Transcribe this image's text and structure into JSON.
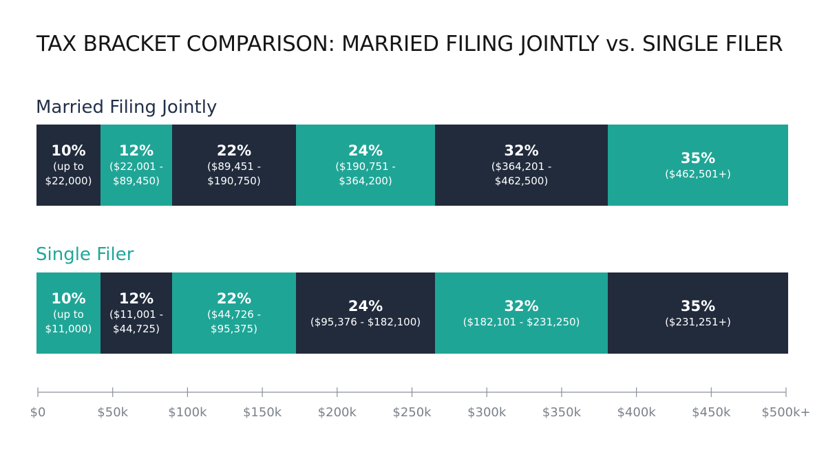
{
  "title": "TAX BRACKET COMPARISON: MARRIED FILING JOINTLY vs. SINGLE FILER",
  "colors": {
    "dark": "#212b3c",
    "teal": "#1fa596"
  },
  "chart_data": {
    "type": "bar",
    "orientation": "horizontal-stacked",
    "title": "TAX BRACKET COMPARISON: MARRIED FILING JOINTLY vs. SINGLE FILER",
    "xlim": [
      0,
      500000
    ],
    "x_ticks": [
      "$0",
      "$50k",
      "$100k",
      "$150k",
      "$200k",
      "$250k",
      "$300k",
      "$350k",
      "$400k",
      "$450k",
      "$500k+"
    ],
    "series": [
      {
        "name": "Married Filing Jointly",
        "brackets": [
          {
            "rate": "10%",
            "range": "(up to\n$22,000)",
            "start": 0,
            "end": 22000
          },
          {
            "rate": "12%",
            "range": "($22,001 -\n$89,450)",
            "start": 22001,
            "end": 89450
          },
          {
            "rate": "22%",
            "range": "($89,451 -\n$190,750)",
            "start": 89451,
            "end": 190750
          },
          {
            "rate": "24%",
            "range": "($190,751 -\n$364,200)",
            "start": 190751,
            "end": 364200
          },
          {
            "rate": "32%",
            "range": "($364,201 -\n$462,500)",
            "start": 364201,
            "end": 462500
          },
          {
            "rate": "35%",
            "range": "($462,501+)",
            "start": 462501,
            "end": null
          }
        ]
      },
      {
        "name": "Single Filer",
        "brackets": [
          {
            "rate": "10%",
            "range": "(up to\n$11,000)",
            "start": 0,
            "end": 11000
          },
          {
            "rate": "12%",
            "range": "($11,001 -\n$44,725)",
            "start": 11001,
            "end": 44725
          },
          {
            "rate": "22%",
            "range": "($44,726 -\n$95,375)",
            "start": 44726,
            "end": 95375
          },
          {
            "rate": "24%",
            "range": "($95,376 - $182,100)",
            "start": 95376,
            "end": 182100
          },
          {
            "rate": "32%",
            "range": "($182,101 - $231,250)",
            "start": 182101,
            "end": 231250
          },
          {
            "rate": "35%",
            "range": "($231,251+)",
            "start": 231251,
            "end": null
          }
        ]
      }
    ]
  }
}
